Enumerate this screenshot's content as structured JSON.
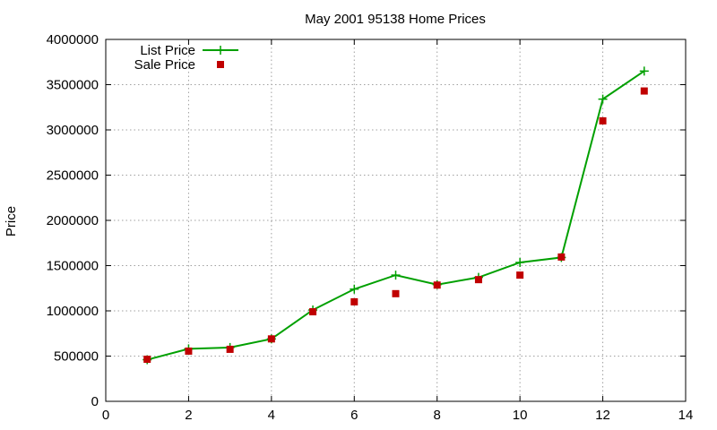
{
  "chart_data": {
    "type": "line",
    "title": "May 2001 95138 Home Prices",
    "xlabel": "",
    "ylabel": "Price",
    "xlim": [
      0,
      14
    ],
    "ylim": [
      0,
      4000000
    ],
    "xticks": [
      0,
      2,
      4,
      6,
      8,
      10,
      12,
      14
    ],
    "yticks": [
      0,
      500000,
      1000000,
      1500000,
      2000000,
      2500000,
      3000000,
      3500000,
      4000000
    ],
    "grid": true,
    "legend_position": "top-left",
    "series": [
      {
        "name": "List Price",
        "style": "linespoints",
        "marker": "plus",
        "color": "#00a000",
        "x": [
          1,
          2,
          3,
          4,
          5,
          6,
          7,
          8,
          9,
          10,
          11,
          12,
          13
        ],
        "y": [
          460000,
          580000,
          595000,
          690000,
          1010000,
          1240000,
          1395000,
          1290000,
          1370000,
          1535000,
          1590000,
          3340000,
          3650000
        ]
      },
      {
        "name": "Sale Price",
        "style": "points",
        "marker": "square",
        "color": "#c00000",
        "x": [
          1,
          2,
          3,
          4,
          5,
          6,
          7,
          8,
          9,
          10,
          11,
          12,
          13
        ],
        "y": [
          465000,
          555000,
          575000,
          690000,
          990000,
          1100000,
          1190000,
          1285000,
          1345000,
          1395000,
          1595000,
          3100000,
          3430000
        ]
      }
    ]
  }
}
